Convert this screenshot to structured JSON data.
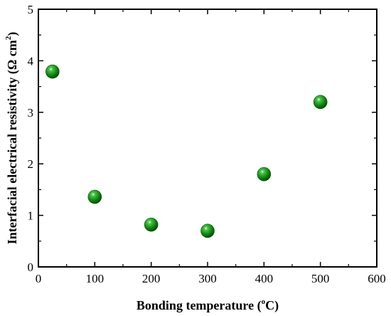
{
  "chart_data": {
    "type": "scatter",
    "xlabel_parts": [
      "Bonding temperature (",
      "o",
      "C)"
    ],
    "ylabel_parts": [
      "Interfacial electrical resistivity (Ω cm",
      "2",
      ")"
    ],
    "xlim": [
      0,
      600
    ],
    "ylim": [
      0,
      5
    ],
    "xticks": [
      0,
      100,
      200,
      300,
      400,
      500,
      600
    ],
    "yticks": [
      0,
      1,
      2,
      3,
      4,
      5
    ],
    "grid": false,
    "legend": "none",
    "marker_color": "#1a8a1a",
    "points": [
      {
        "x": 25,
        "y": 3.79
      },
      {
        "x": 100,
        "y": 1.36
      },
      {
        "x": 200,
        "y": 0.82
      },
      {
        "x": 300,
        "y": 0.7
      },
      {
        "x": 400,
        "y": 1.8
      },
      {
        "x": 500,
        "y": 3.2
      }
    ]
  }
}
